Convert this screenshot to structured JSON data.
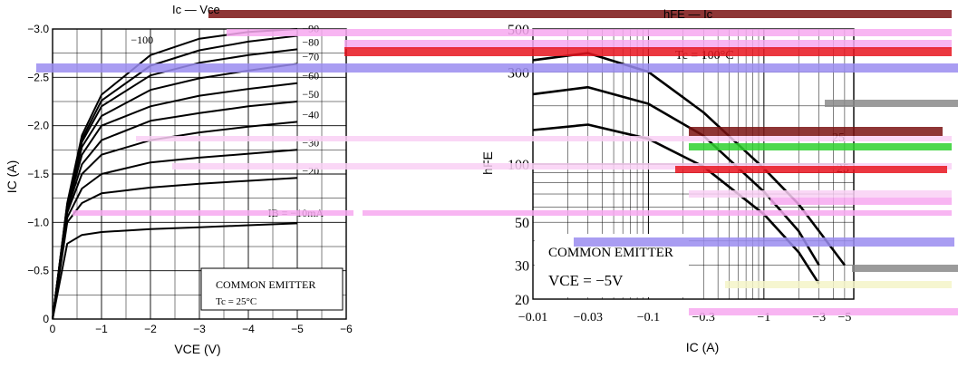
{
  "colors": {
    "background": "#ffffff",
    "ink": "#000000",
    "grid": "#000000",
    "artifact_maroon": "#7a1212",
    "artifact_pink": "#f7a8f0",
    "artifact_purple": "#9a8cf0",
    "artifact_red": "#e8141e",
    "artifact_green": "#2fd12f",
    "artifact_gray": "#8a8a8a",
    "artifact_lightyellow": "#f5f5c8",
    "artifact_lightpink": "#f9d0f4"
  },
  "artifact_band_values_note": "",
  "chart_data": [
    {
      "type": "line",
      "title": "IC - VCE",
      "xlabel": "VCE (V)",
      "ylabel": "IC (A)",
      "xlim": [
        0,
        -6
      ],
      "ylim": [
        0,
        -3.0
      ],
      "x_ticks": [
        0,
        -1,
        -2,
        -3,
        -4,
        -5,
        -6
      ],
      "x_tick_labels": [
        "0",
        "−1",
        "−2",
        "−3",
        "−4",
        "−5",
        "−6"
      ],
      "y_ticks": [
        0,
        -0.5,
        -1.0,
        -1.5,
        -2.0,
        -2.5,
        -3.0
      ],
      "y_tick_labels": [
        "0",
        "−0.5",
        "−1.0",
        "−1.5",
        "−2.0",
        "−2.5",
        "−3.0"
      ],
      "grid": true,
      "annotations": [
        "COMMON EMITTER",
        "Tc = 25°C"
      ],
      "series": [
        {
          "name": "IB = −10mA",
          "x": [
            0,
            -0.3,
            -0.6,
            -1.0,
            -2.0,
            -3.0,
            -4.0,
            -5.0
          ],
          "y": [
            0,
            -0.78,
            -0.87,
            -0.9,
            -0.93,
            -0.95,
            -0.97,
            -0.99
          ]
        },
        {
          "name": "−20",
          "x": [
            0,
            -0.3,
            -0.6,
            -1.0,
            -2.0,
            -3.0,
            -4.0,
            -5.0
          ],
          "y": [
            0,
            -1.0,
            -1.2,
            -1.3,
            -1.36,
            -1.4,
            -1.43,
            -1.46
          ]
        },
        {
          "name": "−30",
          "x": [
            0,
            -0.3,
            -0.6,
            -1.0,
            -2.0,
            -3.0,
            -4.0,
            -5.0
          ],
          "y": [
            0,
            -1.05,
            -1.35,
            -1.5,
            -1.62,
            -1.67,
            -1.71,
            -1.75
          ]
        },
        {
          "name": "−40",
          "x": [
            0,
            -0.3,
            -0.6,
            -1.0,
            -2.0,
            -3.0,
            -4.0,
            -5.0
          ],
          "y": [
            0,
            -1.1,
            -1.5,
            -1.7,
            -1.85,
            -1.93,
            -1.99,
            -2.04
          ]
        },
        {
          "name": "−50",
          "x": [
            0,
            -0.3,
            -0.6,
            -1.0,
            -2.0,
            -3.0,
            -4.0,
            -5.0
          ],
          "y": [
            0,
            -1.13,
            -1.6,
            -1.85,
            -2.05,
            -2.13,
            -2.2,
            -2.25
          ]
        },
        {
          "name": "−60",
          "x": [
            0,
            -0.3,
            -0.6,
            -1.0,
            -2.0,
            -3.0,
            -4.0,
            -5.0
          ],
          "y": [
            0,
            -1.15,
            -1.7,
            -2.0,
            -2.2,
            -2.31,
            -2.38,
            -2.44
          ]
        },
        {
          "name": "−70",
          "x": [
            0,
            -0.3,
            -0.6,
            -1.0,
            -2.0,
            -3.0,
            -4.0,
            -5.0
          ],
          "y": [
            0,
            -1.17,
            -1.78,
            -2.1,
            -2.37,
            -2.49,
            -2.57,
            -2.64
          ]
        },
        {
          "name": "−80",
          "x": [
            0,
            -0.3,
            -0.6,
            -1.0,
            -2.0,
            -3.0,
            -4.0,
            -5.0
          ],
          "y": [
            0,
            -1.18,
            -1.83,
            -2.2,
            -2.52,
            -2.65,
            -2.73,
            -2.79
          ]
        },
        {
          "name": "−90",
          "x": [
            0,
            -0.3,
            -0.6,
            -1.0,
            -2.0,
            -3.0,
            -4.0,
            -5.0
          ],
          "y": [
            0,
            -1.19,
            -1.86,
            -2.26,
            -2.62,
            -2.78,
            -2.87,
            -2.93
          ]
        },
        {
          "name": "−100",
          "x": [
            0,
            -0.3,
            -0.6,
            -1.0,
            -2.0,
            -3.0,
            -4.0,
            -5.0
          ],
          "y": [
            0,
            -1.2,
            -1.9,
            -2.32,
            -2.73,
            -2.9,
            -2.97,
            -3.0
          ]
        }
      ]
    },
    {
      "type": "line",
      "title": "hFE - IC",
      "xlabel": "IC (A)",
      "ylabel": "hFE",
      "xscale": "log",
      "yscale": "log",
      "xlim": [
        -0.01,
        -6
      ],
      "ylim": [
        20,
        500
      ],
      "x_ticks": [
        -0.01,
        -0.03,
        -0.1,
        -0.3,
        -1,
        -3,
        -5
      ],
      "x_tick_labels": [
        "−0.01",
        "−0.03",
        "−0.1",
        "−0.3",
        "−1",
        "−3",
        "−5"
      ],
      "y_ticks": [
        20,
        30,
        50,
        100,
        300,
        500
      ],
      "y_tick_labels": [
        "20",
        "30",
        "50",
        "100",
        "300",
        "500"
      ],
      "grid": true,
      "annotations": [
        "COMMON EMITTER",
        "VCE = −5V",
        "Tc = 100°C",
        "25",
        "−25"
      ],
      "series": [
        {
          "name": "Tc = 100°C",
          "x": [
            -0.01,
            -0.03,
            -0.1,
            -0.3,
            -1,
            -2,
            -3,
            -5
          ],
          "y": [
            345,
            375,
            300,
            185,
            95,
            62,
            45,
            30
          ]
        },
        {
          "name": "25",
          "x": [
            -0.01,
            -0.03,
            -0.1,
            -0.3,
            -1,
            -2,
            -3
          ],
          "y": [
            230,
            250,
            205,
            140,
            72,
            45,
            30
          ]
        },
        {
          "name": "−25",
          "x": [
            -0.01,
            -0.03,
            -0.1,
            -0.3,
            -1,
            -2,
            -3
          ],
          "y": [
            150,
            160,
            135,
            97,
            55,
            35,
            24
          ]
        }
      ]
    }
  ],
  "header_left_fragment": "Ic — Vce",
  "header_right_fragment": "hFE — Ic"
}
